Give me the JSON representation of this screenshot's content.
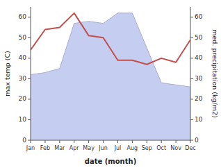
{
  "chart_data": {
    "type": "line",
    "categories": [
      "Jan",
      "Feb",
      "Mar",
      "Apr",
      "May",
      "Jun",
      "Jul",
      "Aug",
      "Sep",
      "Oct",
      "Nov",
      "Dec"
    ],
    "series": [
      {
        "type": "area",
        "color": "#c5cdf0",
        "values": [
          32,
          33,
          35,
          57,
          58,
          57,
          62,
          62,
          45,
          28,
          27,
          26
        ]
      },
      {
        "type": "line",
        "color": "#c0504d",
        "axis": "y2",
        "values": [
          44,
          54,
          55,
          62,
          51,
          50,
          39,
          39,
          37,
          40,
          38,
          49
        ]
      }
    ],
    "x_label": "date (month)",
    "y_label": "max temp (C)",
    "y2_label": "med. precipitation (kg/m2)",
    "ylim": [
      0,
      65
    ],
    "yticks": [
      0,
      10,
      20,
      30,
      40,
      50,
      60
    ],
    "y2lim": [
      0,
      65
    ],
    "y2ticks": [
      0,
      10,
      20,
      30,
      40,
      50,
      60
    ],
    "grid": false
  }
}
